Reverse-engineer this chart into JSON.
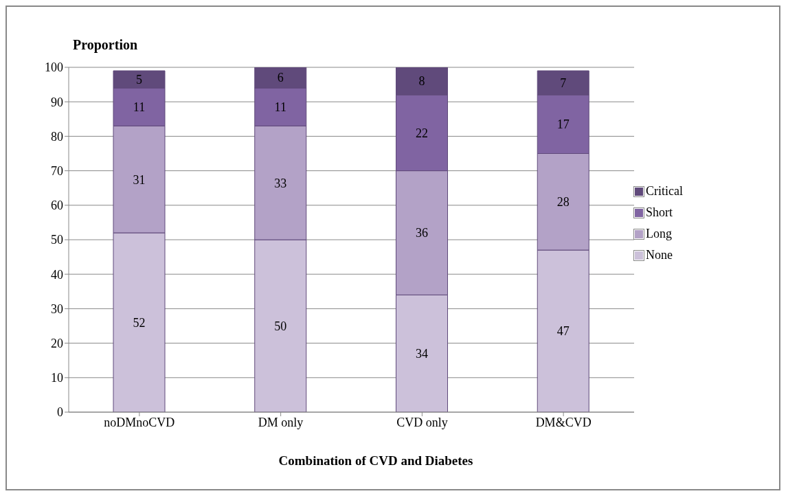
{
  "chart_data": {
    "type": "bar",
    "title": "Proportion",
    "xlabel": "Combination of CVD and Diabetes",
    "categories": [
      "noDMnoCVD",
      "DM only",
      "CVD only",
      "DM&CVD"
    ],
    "stacked": true,
    "data_labels": true,
    "legend": "right",
    "grid": "y",
    "ylim": [
      0,
      100
    ],
    "yticks": [
      0,
      10,
      20,
      30,
      40,
      50,
      60,
      70,
      80,
      90,
      100
    ],
    "series": [
      {
        "name": "None",
        "color": "#ccc1da",
        "values": [
          52,
          50,
          34,
          47
        ]
      },
      {
        "name": "Long",
        "color": "#b3a2c7",
        "values": [
          31,
          33,
          36,
          28
        ]
      },
      {
        "name": "Short",
        "color": "#8064a2",
        "values": [
          11,
          11,
          22,
          17
        ]
      },
      {
        "name": "Critical",
        "color": "#604a7b",
        "values": [
          5,
          6,
          8,
          7
        ]
      }
    ]
  }
}
